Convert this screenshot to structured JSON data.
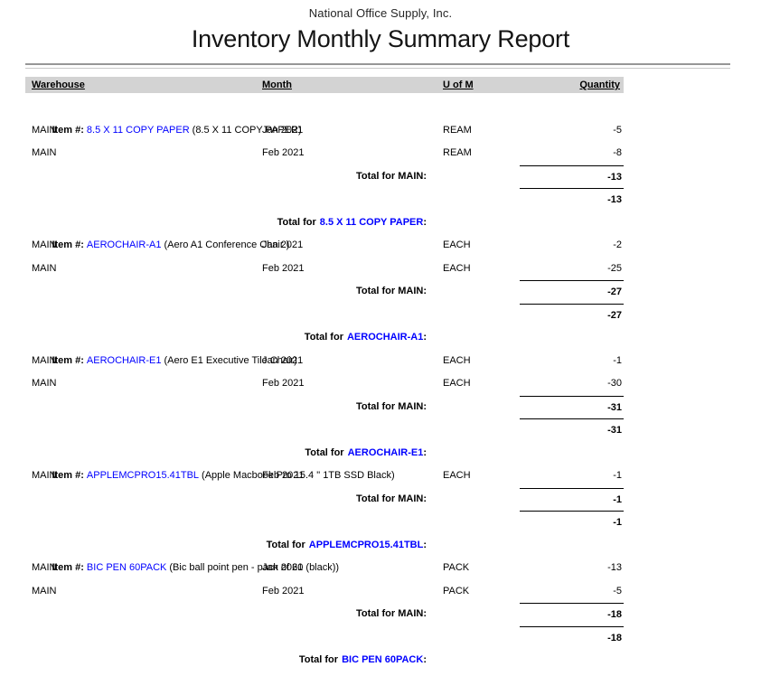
{
  "report": {
    "company_name": "National Office Supply, Inc.",
    "title": "Inventory Monthly Summary Report",
    "column_headers": {
      "warehouse": "Warehouse",
      "month": "Month",
      "uofm": "U of M",
      "quantity": "Quantity"
    },
    "labels": {
      "item_prefix": "Item #:",
      "total_for": "Total for",
      "colon": ":"
    },
    "colors": {
      "item_link": "#0000ff",
      "column_header_bg": "#d3d3d3",
      "rule_dark": "#969696",
      "rule_light": "#c9c9c9",
      "total_rule": "#000000"
    },
    "sections": [
      {
        "item_number": "8.5 X 11 COPY PAPER",
        "description": "(8.5 X 11 COPY PAPER)",
        "rows": [
          {
            "warehouse": "MAIN",
            "month": "Jan 2021",
            "uofm": "REAM",
            "quantity": "-5"
          },
          {
            "warehouse": "MAIN",
            "month": "Feb 2021",
            "uofm": "REAM",
            "quantity": "-8"
          }
        ],
        "warehouse_total_label": "Total for MAIN:",
        "warehouse_total": "-13",
        "item_total": "-13"
      },
      {
        "item_number": "AEROCHAIR-A1",
        "description": "(Aero A1 Conference Chair )",
        "rows": [
          {
            "warehouse": "MAIN",
            "month": "Jan 2021",
            "uofm": "EACH",
            "quantity": "-2"
          },
          {
            "warehouse": "MAIN",
            "month": "Feb 2021",
            "uofm": "EACH",
            "quantity": "-25"
          }
        ],
        "warehouse_total_label": "Total for MAIN:",
        "warehouse_total": "-27",
        "item_total": "-27"
      },
      {
        "item_number": "AEROCHAIR-E1",
        "description": "(Aero E1 Executive Tile Chair)",
        "rows": [
          {
            "warehouse": "MAIN",
            "month": "Jan 2021",
            "uofm": "EACH",
            "quantity": "-1"
          },
          {
            "warehouse": "MAIN",
            "month": "Feb 2021",
            "uofm": "EACH",
            "quantity": "-30"
          }
        ],
        "warehouse_total_label": "Total for MAIN:",
        "warehouse_total": "-31",
        "item_total": "-31"
      },
      {
        "item_number": "APPLEMCPRO15.41TBL",
        "description": "(Apple Macbook Pro 15.4 \" 1TB SSD Black)",
        "rows": [
          {
            "warehouse": "MAIN",
            "month": "Feb 2021",
            "uofm": "EACH",
            "quantity": "-1"
          }
        ],
        "warehouse_total_label": "Total for MAIN:",
        "warehouse_total": "-1",
        "item_total": "-1"
      },
      {
        "item_number": "BIC PEN 60PACK",
        "description": "(Bic ball point pen - pack of 60 (black))",
        "rows": [
          {
            "warehouse": "MAIN",
            "month": "Jan 2021",
            "uofm": "PACK",
            "quantity": "-13"
          },
          {
            "warehouse": "MAIN",
            "month": "Feb 2021",
            "uofm": "PACK",
            "quantity": "-5"
          }
        ],
        "warehouse_total_label": "Total for MAIN:",
        "warehouse_total": "-18",
        "item_total": "-18"
      }
    ]
  }
}
